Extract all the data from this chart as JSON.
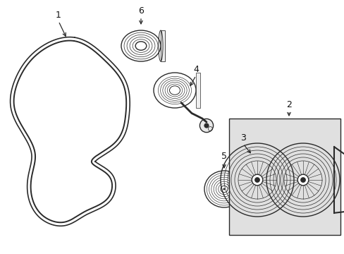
{
  "bg_color": "#ffffff",
  "line_color": "#2a2a2a",
  "box_bg_color": "#e0e0e0",
  "label_color": "#111111",
  "font_size": 9,
  "lw_belt": 1.4,
  "lw_part": 1.0,
  "lw_thin": 0.7
}
